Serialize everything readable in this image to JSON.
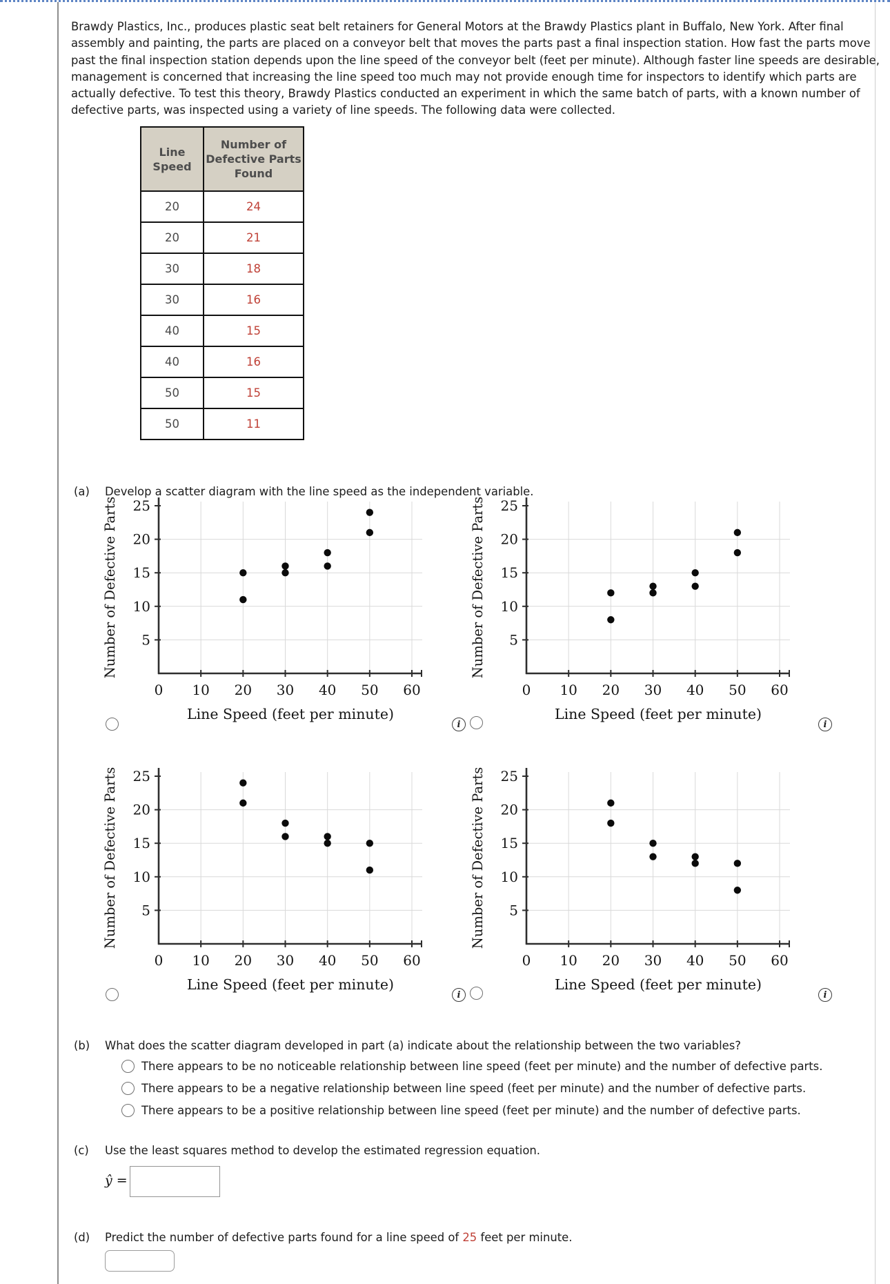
{
  "page": {
    "intro": "Brawdy Plastics, Inc., produces plastic seat belt retainers for General Motors at the Brawdy Plastics plant in Buffalo, New York. After final assembly and painting, the parts are placed on a conveyor belt that moves the parts past a final inspection station. How fast the parts move past the final inspection station depends upon the line speed of the conveyor belt (feet per minute). Although faster line speeds are desirable, management is concerned that increasing the line speed too much may not provide enough time for inspectors to identify which parts are actually defective. To test this theory, Brawdy Plastics conducted an experiment in which the same batch of parts, with a known number of defective parts, was inspected using a variety of line speeds. The following data were collected."
  },
  "icons": {
    "info": "i"
  },
  "colors": {
    "accent_red": "#bf4036",
    "border_blue": "#5d84c4",
    "table_header_bg": "#d5d0c4"
  },
  "table": {
    "col1_header": "Line Speed",
    "col2_header": "Number of Defective Parts Found",
    "rows": [
      {
        "speed": "20",
        "defects": "24"
      },
      {
        "speed": "20",
        "defects": "21"
      },
      {
        "speed": "30",
        "defects": "18"
      },
      {
        "speed": "30",
        "defects": "16"
      },
      {
        "speed": "40",
        "defects": "15"
      },
      {
        "speed": "40",
        "defects": "16"
      },
      {
        "speed": "50",
        "defects": "15"
      },
      {
        "speed": "50",
        "defects": "11"
      }
    ]
  },
  "parts": {
    "a": {
      "marker": "(a)",
      "text": "Develop a scatter diagram with the line speed as the independent variable."
    },
    "b": {
      "marker": "(b)",
      "text": "What does the scatter diagram developed in part (a) indicate about the relationship between the two variables?",
      "options": [
        "There appears to be no noticeable relationship between line speed (feet per minute) and the number of defective parts.",
        "There appears to be a negative relationship between line speed (feet per minute) and the number of defective parts.",
        "There appears to be a positive relationship between line speed (feet per minute) and the number of defective parts."
      ]
    },
    "c": {
      "marker": "(c)",
      "text": "Use the least squares method to develop the estimated regression equation.",
      "equation_label": "ŷ =",
      "input_value": ""
    },
    "d": {
      "marker": "(d)",
      "text_before": "Predict the number of defective parts found for a line speed of ",
      "value": "25",
      "text_after": " feet per minute.",
      "input_value": ""
    }
  },
  "chart_data": [
    {
      "type": "scatter",
      "name": "top-left",
      "points": [
        [
          20,
          15
        ],
        [
          20,
          11
        ],
        [
          30,
          16
        ],
        [
          30,
          15
        ],
        [
          40,
          18
        ],
        [
          40,
          16
        ],
        [
          50,
          24
        ],
        [
          50,
          21
        ]
      ],
      "xlabel": "Line Speed (feet per minute)",
      "ylabel": "Number of Defective Parts",
      "xticks": [
        0,
        10,
        20,
        30,
        40,
        50,
        60
      ],
      "yticks": [
        5,
        10,
        15,
        20,
        25
      ],
      "xlim": [
        0,
        62
      ],
      "ylim": [
        0,
        26
      ],
      "grid": true
    },
    {
      "type": "scatter",
      "name": "top-right",
      "points": [
        [
          20,
          12
        ],
        [
          20,
          8
        ],
        [
          30,
          13
        ],
        [
          30,
          12
        ],
        [
          40,
          15
        ],
        [
          40,
          13
        ],
        [
          50,
          21
        ],
        [
          50,
          18
        ]
      ],
      "xlabel": "Line Speed (feet per minute)",
      "ylabel": "Number of Defective Parts",
      "xticks": [
        0,
        10,
        20,
        30,
        40,
        50,
        60
      ],
      "yticks": [
        5,
        10,
        15,
        20,
        25
      ],
      "xlim": [
        0,
        62
      ],
      "ylim": [
        0,
        26
      ],
      "grid": true
    },
    {
      "type": "scatter",
      "name": "bottom-left",
      "points": [
        [
          20,
          24
        ],
        [
          20,
          21
        ],
        [
          30,
          18
        ],
        [
          30,
          16
        ],
        [
          40,
          16
        ],
        [
          40,
          15
        ],
        [
          50,
          15
        ],
        [
          50,
          11
        ]
      ],
      "xlabel": "Line Speed (feet per minute)",
      "ylabel": "Number of Defective Parts",
      "xticks": [
        0,
        10,
        20,
        30,
        40,
        50,
        60
      ],
      "yticks": [
        5,
        10,
        15,
        20,
        25
      ],
      "xlim": [
        0,
        62
      ],
      "ylim": [
        0,
        26
      ],
      "grid": true
    },
    {
      "type": "scatter",
      "name": "bottom-right",
      "points": [
        [
          20,
          21
        ],
        [
          20,
          18
        ],
        [
          30,
          15
        ],
        [
          30,
          13
        ],
        [
          40,
          13
        ],
        [
          40,
          12
        ],
        [
          50,
          12
        ],
        [
          50,
          8
        ]
      ],
      "xlabel": "Line Speed (feet per minute)",
      "ylabel": "Number of Defective Parts",
      "xticks": [
        0,
        10,
        20,
        30,
        40,
        50,
        60
      ],
      "yticks": [
        5,
        10,
        15,
        20,
        25
      ],
      "xlim": [
        0,
        62
      ],
      "ylim": [
        0,
        26
      ],
      "grid": true
    }
  ]
}
